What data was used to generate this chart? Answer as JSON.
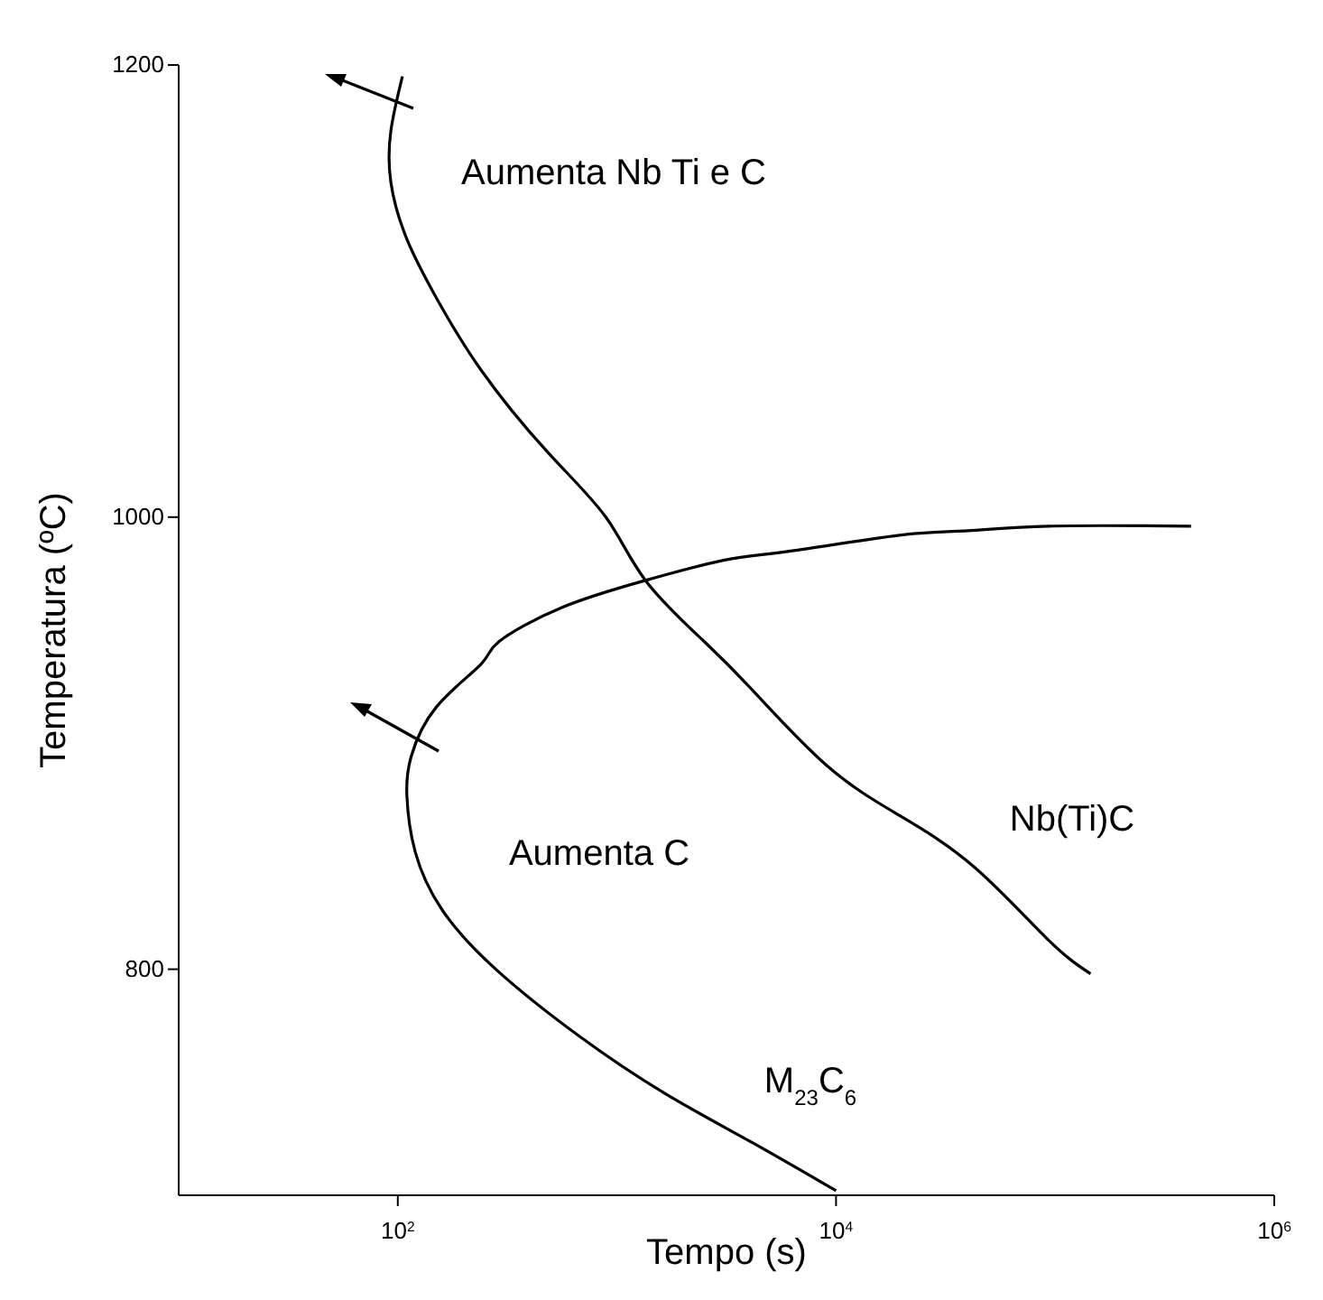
{
  "chart_data": {
    "type": "line",
    "xlabel": "Tempo (s)",
    "ylabel": "Temperatura (ºC)",
    "log": "x",
    "xlim": [
      10,
      1000000
    ],
    "xticks": [
      {
        "value": 100,
        "label": "10$^{2}$"
      },
      {
        "value": 10000,
        "label": "10$^{4}$"
      },
      {
        "value": 1000000,
        "label": "10$^{6}$"
      }
    ],
    "ylim": [
      700,
      1200
    ],
    "yticks": [
      800,
      1000,
      1200
    ],
    "marker": "none",
    "line_style": "solid",
    "series": [
      {
        "color": "#000000",
        "x": [
          105,
          93,
          93,
          110,
          150,
          240,
          480,
          890,
          1350,
          2500,
          4200,
          9100,
          19500,
          43000,
          93000,
          145000
        ],
        "values": [
          1195,
          1171,
          1148,
          1123,
          1097,
          1065,
          1029,
          1000,
          972,
          945,
          923,
          890,
          868,
          845,
          813,
          798
        ]
      },
      {
        "color": "#000000",
        "x": [
          417000,
          93000,
          40000,
          19500,
          6200,
          3100,
          1350,
          560,
          290,
          240,
          150,
          115,
          110,
          120,
          160,
          280,
          660,
          1660,
          4200,
          10000
        ],
        "values": [
          996,
          996,
          994,
          992,
          985,
          981,
          972,
          960,
          945,
          935,
          916,
          894,
          877,
          852,
          826,
          800,
          771,
          745,
          723,
          702
        ]
      }
    ],
    "annotations": [
      "Aumenta Nb Ti e C",
      "Aumenta C",
      "Nb(Ti)C",
      "M$_{23}$C$_{6}$"
    ]
  }
}
